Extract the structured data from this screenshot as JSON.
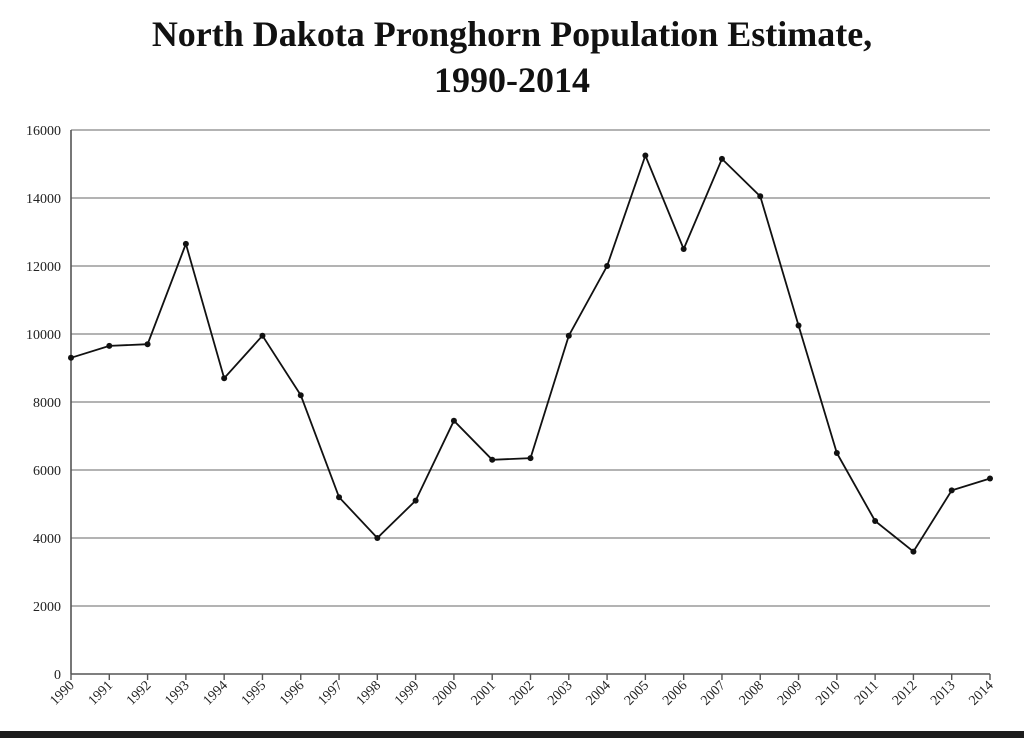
{
  "chart_data": {
    "type": "line",
    "title_line1": "North Dakota Pronghorn Population Estimate,",
    "title_line2": "1990-2014",
    "xlabel": "",
    "ylabel": "",
    "ylim": [
      0,
      16000
    ],
    "yticks": [
      "0",
      "2000",
      "4000",
      "6000",
      "8000",
      "10000",
      "12000",
      "14000",
      "16000"
    ],
    "categories": [
      "1990",
      "1991",
      "1992",
      "1993",
      "1994",
      "1995",
      "1996",
      "1997",
      "1998",
      "1999",
      "2000",
      "2001",
      "2002",
      "2003",
      "2004",
      "2005",
      "2006",
      "2007",
      "2008",
      "2009",
      "2010",
      "2011",
      "2012",
      "2013",
      "2014"
    ],
    "series": [
      {
        "values": [
          9300,
          9650,
          9700,
          12650,
          8700,
          9950,
          8200,
          5200,
          4000,
          5100,
          7450,
          6300,
          6350,
          9950,
          12000,
          15250,
          12500,
          15150,
          14050,
          10250,
          6500,
          4500,
          3600,
          5400,
          5750
        ]
      }
    ],
    "grid": true,
    "legend": "none",
    "colors": {
      "line": "#111111",
      "grid": "#9a9a9a",
      "axis": "#555555"
    }
  }
}
